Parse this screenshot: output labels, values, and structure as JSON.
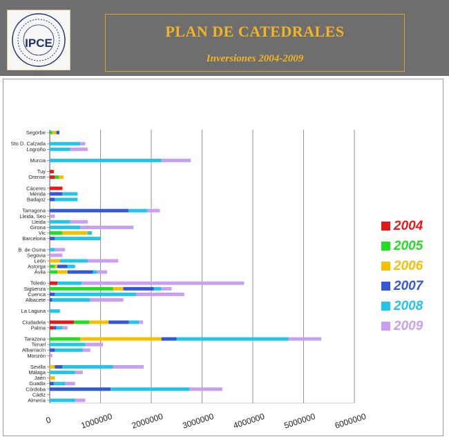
{
  "header": {
    "logo_text": "IPCE",
    "title": "PLAN DE CATEDRALES",
    "subtitle": "Inversiones 2004-2009"
  },
  "colors": {
    "header_bg": "#6e6e6e",
    "title": "#f4b51f"
  },
  "chart_data": {
    "type": "bar",
    "orientation": "horizontal",
    "stacked": true,
    "categories": [
      "Segorbe",
      "Sto D. Calzada",
      "Logroño",
      "Murcia",
      "Tuy",
      "Orense",
      "Cáceres",
      "Mérida",
      "Badajoz",
      "Tarragona",
      "Lleida, Seo",
      "Lleida",
      "Girona",
      "Vic",
      "Barcelona",
      "B. de Osma",
      "Segovia",
      "León",
      "Astorga",
      "Ávila",
      "Toledo",
      "Sigüenza",
      "Cuenca",
      "Albacete",
      "La Laguna",
      "Ciudadela",
      "Palma",
      "Tarazona",
      "Teruel",
      "Albarracín",
      "Monzón",
      "Sevilla",
      "Málaga",
      "Jaén",
      "Guadix",
      "Córdoba",
      "Cádiz",
      "Almería"
    ],
    "slots": [
      0,
      2,
      3,
      5,
      7,
      8,
      10,
      11,
      12,
      14,
      15,
      16,
      17,
      18,
      19,
      21,
      22,
      23,
      24,
      25,
      27,
      28,
      29,
      30,
      32,
      34,
      35,
      37,
      38,
      39,
      40,
      42,
      43,
      44,
      45,
      46,
      47,
      48
    ],
    "slot_count": 49,
    "series": [
      {
        "name": "2004",
        "color": "#e21a1a",
        "values": [
          0,
          0,
          0,
          0,
          80000,
          100000,
          250000,
          0,
          0,
          0,
          0,
          0,
          0,
          0,
          0,
          0,
          0,
          0,
          0,
          0,
          150000,
          0,
          0,
          0,
          0,
          480000,
          80000,
          0,
          0,
          0,
          0,
          0,
          0,
          0,
          0,
          0,
          0,
          0
        ]
      },
      {
        "name": "2005",
        "color": "#22dd22",
        "values": [
          50000,
          0,
          0,
          0,
          0,
          80000,
          0,
          0,
          0,
          0,
          0,
          0,
          0,
          250000,
          0,
          0,
          0,
          0,
          100000,
          150000,
          0,
          1250000,
          0,
          0,
          0,
          300000,
          0,
          600000,
          0,
          0,
          0,
          0,
          0,
          0,
          0,
          0,
          0,
          0
        ]
      },
      {
        "name": "2006",
        "color": "#f5c000",
        "values": [
          80000,
          0,
          0,
          0,
          0,
          90000,
          0,
          0,
          0,
          0,
          0,
          0,
          0,
          500000,
          0,
          0,
          0,
          200000,
          50000,
          200000,
          0,
          200000,
          0,
          0,
          0,
          380000,
          0,
          1600000,
          0,
          0,
          0,
          100000,
          0,
          100000,
          0,
          0,
          0,
          0
        ]
      },
      {
        "name": "2007",
        "color": "#3357d5",
        "values": [
          60000,
          0,
          0,
          0,
          0,
          0,
          0,
          250000,
          100000,
          1550000,
          0,
          0,
          0,
          0,
          100000,
          0,
          0,
          0,
          200000,
          500000,
          0,
          600000,
          100000,
          50000,
          0,
          400000,
          50000,
          300000,
          0,
          100000,
          0,
          150000,
          0,
          0,
          80000,
          1200000,
          0,
          0
        ]
      },
      {
        "name": "2008",
        "color": "#22c5e8",
        "values": [
          0,
          600000,
          400000,
          2200000,
          0,
          0,
          0,
          300000,
          450000,
          370000,
          0,
          400000,
          600000,
          80000,
          900000,
          100000,
          0,
          550000,
          150000,
          80000,
          480000,
          150000,
          1600000,
          750000,
          200000,
          200000,
          120000,
          2200000,
          700000,
          550000,
          0,
          1000000,
          500000,
          0,
          220000,
          1550000,
          0,
          500000
        ]
      },
      {
        "name": "2009",
        "color": "#c8a0ee",
        "values": [
          0,
          100000,
          350000,
          580000,
          0,
          0,
          0,
          0,
          0,
          250000,
          100000,
          350000,
          1050000,
          0,
          0,
          200000,
          250000,
          600000,
          0,
          200000,
          3200000,
          200000,
          950000,
          650000,
          0,
          80000,
          100000,
          650000,
          350000,
          150000,
          50000,
          600000,
          150000,
          0,
          200000,
          650000,
          0,
          200000
        ]
      }
    ],
    "x_ticks": [
      0,
      1000000,
      2000000,
      3000000,
      4000000,
      5000000,
      6000000
    ],
    "x_tick_labels": [
      "0",
      "1000000",
      "2000000",
      "3000000",
      "4000000",
      "5000000",
      "6000000"
    ],
    "xlim": [
      0,
      6000000
    ],
    "grid": true,
    "legend_position": "right"
  }
}
